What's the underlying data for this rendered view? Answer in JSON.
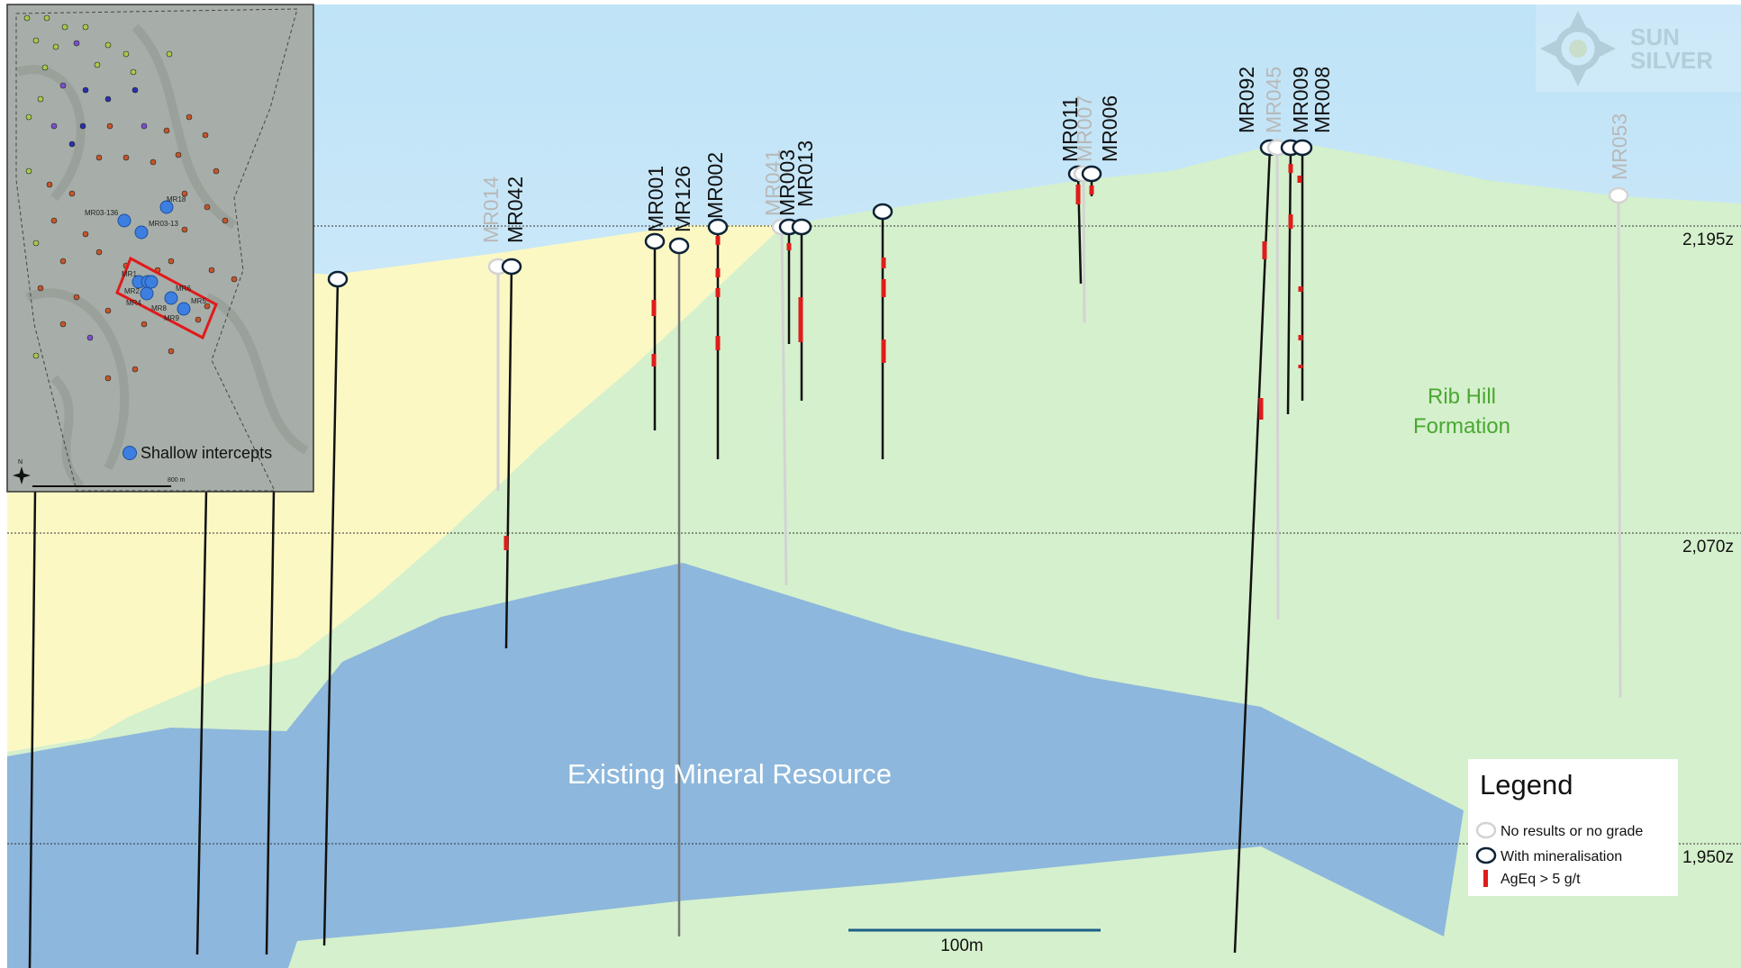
{
  "colors": {
    "sky_top": "#bfe3f7",
    "sky_bottom": "#e4f3fb",
    "cover": "#fbf8c4",
    "formation": "#d5f0cc",
    "resource": "#8db7dc",
    "grade": "#e01b1b",
    "formation_label": "#4aa832",
    "no_result": "#d3d3d3"
  },
  "elevations": [
    {
      "id": "e2195",
      "label": "2,195z"
    },
    {
      "id": "e2070",
      "label": "2,070z"
    },
    {
      "id": "e1950",
      "label": "1,950z"
    }
  ],
  "formation_label": [
    "Rib Hill",
    "Formation"
  ],
  "resource_label": "Existing Mineral Resource",
  "scale_bar_label": "100m",
  "watermark": {
    "line1": "SUN",
    "line2": "SILVER"
  },
  "legend": {
    "title": "Legend",
    "items": [
      {
        "symbol": "no-result",
        "label": "No results or no grade"
      },
      {
        "symbol": "mineralised",
        "label": "With mineralisation"
      },
      {
        "symbol": "grade",
        "label": "AgEq > 5 g/t"
      }
    ]
  },
  "drill_holes": [
    {
      "id": "MR014",
      "status": "no-result"
    },
    {
      "id": "MR042",
      "status": "mineralised"
    },
    {
      "id": "MR001",
      "status": "mineralised"
    },
    {
      "id": "MR126",
      "status": "mineralised"
    },
    {
      "id": "MR002",
      "status": "mineralised"
    },
    {
      "id": "MR041",
      "status": "no-result"
    },
    {
      "id": "MR003",
      "status": "mineralised"
    },
    {
      "id": "MR013",
      "status": "mineralised"
    },
    {
      "id": "MR011",
      "status": "mineralised"
    },
    {
      "id": "MR007",
      "status": "no-result"
    },
    {
      "id": "MR006",
      "status": "mineralised"
    },
    {
      "id": "MR092",
      "status": "mineralised"
    },
    {
      "id": "MR045",
      "status": "no-result"
    },
    {
      "id": "MR009",
      "status": "mineralised"
    },
    {
      "id": "MR008",
      "status": "mineralised"
    },
    {
      "id": "MR053",
      "status": "no-result"
    }
  ],
  "inset_map": {
    "labels": [
      "MR18",
      "MR03-136",
      "MR03-13",
      "MR1",
      "MR2",
      "MR8",
      "MR6",
      "MR9",
      "MR5",
      "MR4"
    ],
    "legend_label": "Shallow intercepts",
    "scale_label": "800 m",
    "north": "N"
  }
}
